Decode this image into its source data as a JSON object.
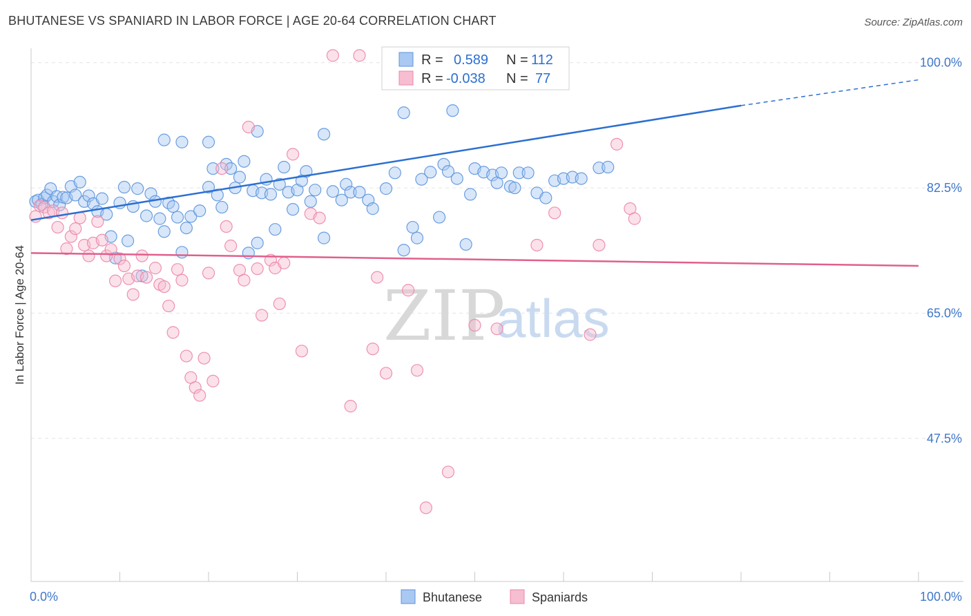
{
  "title": "BHUTANESE VS SPANIARD IN LABOR FORCE | AGE 20-64 CORRELATION CHART",
  "source": "Source: ZipAtlas.com",
  "watermark": {
    "zip": "ZIP",
    "atlas": "atlas"
  },
  "colors": {
    "blue": "#5b93dd",
    "blue_fill": "#a9c8f2",
    "blue_line": "#2b6fd1",
    "pink": "#eb86a8",
    "pink_fill": "#f7bdd1",
    "pink_line": "#e05f8d",
    "tick_label": "#3f77c9"
  },
  "stats": {
    "rows": [
      {
        "series": "Bhutanese",
        "r_label": "R =",
        "r_value": "0.589",
        "n_label": "N =",
        "n_value": "112"
      },
      {
        "series": "Spaniards",
        "r_label": "R =",
        "r_value": "-0.038",
        "n_label": "N =",
        "n_value": "77"
      }
    ]
  },
  "chart_data": {
    "type": "scatter",
    "title": "BHUTANESE VS SPANIARD IN LABOR FORCE | AGE 20-64 CORRELATION CHART",
    "xlabel": "",
    "ylabel": "In Labor Force | Age 20-64",
    "xlim": [
      0,
      100
    ],
    "ylim": [
      27.5,
      102
    ],
    "x_tick_labels": [
      "0.0%",
      "100.0%"
    ],
    "y_ticks": [
      47.5,
      65.0,
      82.5,
      100.0
    ],
    "y_tick_labels": [
      "47.5%",
      "65.0%",
      "82.5%",
      "100.0%"
    ],
    "grid": true,
    "legend": "bottom-center",
    "series": [
      {
        "name": "Bhutanese",
        "color": "#5b93dd",
        "trend": {
          "x": [
            0,
            80
          ],
          "y": [
            78.0,
            94.0
          ],
          "dashed_to": {
            "x": 100,
            "y": 97.6
          }
        },
        "points": [
          [
            0.5,
            80.6
          ],
          [
            0.8,
            80.8
          ],
          [
            1.2,
            80.2
          ],
          [
            1.5,
            81.1
          ],
          [
            1.8,
            81.5
          ],
          [
            2.2,
            82.4
          ],
          [
            2.5,
            80.6
          ],
          [
            2.9,
            81.3
          ],
          [
            3.2,
            80.1
          ],
          [
            3.6,
            81.2
          ],
          [
            4.0,
            81.1
          ],
          [
            4.5,
            82.7
          ],
          [
            5.0,
            81.5
          ],
          [
            5.5,
            83.3
          ],
          [
            6.0,
            80.6
          ],
          [
            6.5,
            81.4
          ],
          [
            7.0,
            80.3
          ],
          [
            7.5,
            79.2
          ],
          [
            8.0,
            81.0
          ],
          [
            8.5,
            78.8
          ],
          [
            9.0,
            75.7
          ],
          [
            9.5,
            72.7
          ],
          [
            10.0,
            80.4
          ],
          [
            10.5,
            82.6
          ],
          [
            10.9,
            75.1
          ],
          [
            11.5,
            79.9
          ],
          [
            12.0,
            82.4
          ],
          [
            12.5,
            70.2
          ],
          [
            13.0,
            78.6
          ],
          [
            13.5,
            81.7
          ],
          [
            14.0,
            80.6
          ],
          [
            14.5,
            78.2
          ],
          [
            15.0,
            76.4
          ],
          [
            15.5,
            80.4
          ],
          [
            16.0,
            79.9
          ],
          [
            16.5,
            78.4
          ],
          [
            17.0,
            73.5
          ],
          [
            17.5,
            76.9
          ],
          [
            18.0,
            78.5
          ],
          [
            19.0,
            79.3
          ],
          [
            20.0,
            82.6
          ],
          [
            20.5,
            85.2
          ],
          [
            21.0,
            81.5
          ],
          [
            21.5,
            79.8
          ],
          [
            22.0,
            85.8
          ],
          [
            22.5,
            85.2
          ],
          [
            23.0,
            82.5
          ],
          [
            23.5,
            84.0
          ],
          [
            24.0,
            86.2
          ],
          [
            24.5,
            73.4
          ],
          [
            25.0,
            82.1
          ],
          [
            25.5,
            74.8
          ],
          [
            26.0,
            81.8
          ],
          [
            26.5,
            83.7
          ],
          [
            27.0,
            81.6
          ],
          [
            27.5,
            76.7
          ],
          [
            28.0,
            83.0
          ],
          [
            28.5,
            85.4
          ],
          [
            29.0,
            81.9
          ],
          [
            29.5,
            79.5
          ],
          [
            30.0,
            82.2
          ],
          [
            30.5,
            83.5
          ],
          [
            31.0,
            84.8
          ],
          [
            31.5,
            80.6
          ],
          [
            32.0,
            82.2
          ],
          [
            33.0,
            75.5
          ],
          [
            34.0,
            82.0
          ],
          [
            35.0,
            80.8
          ],
          [
            35.5,
            83.0
          ],
          [
            36.0,
            81.9
          ],
          [
            37.0,
            81.9
          ],
          [
            38.0,
            80.8
          ],
          [
            38.5,
            79.6
          ],
          [
            40.0,
            82.4
          ],
          [
            41.0,
            84.6
          ],
          [
            42.0,
            73.8
          ],
          [
            43.0,
            77.0
          ],
          [
            43.5,
            75.5
          ],
          [
            44.0,
            83.7
          ],
          [
            45.0,
            84.7
          ],
          [
            46.0,
            78.4
          ],
          [
            46.5,
            85.8
          ],
          [
            47.0,
            84.8
          ],
          [
            48.0,
            83.8
          ],
          [
            49.0,
            74.6
          ],
          [
            49.5,
            81.6
          ],
          [
            50.0,
            85.2
          ],
          [
            51.0,
            84.7
          ],
          [
            52.0,
            84.3
          ],
          [
            52.5,
            83.2
          ],
          [
            53.0,
            84.6
          ],
          [
            54.0,
            82.7
          ],
          [
            54.5,
            82.5
          ],
          [
            55.0,
            84.6
          ],
          [
            56.0,
            84.6
          ],
          [
            57.0,
            81.8
          ],
          [
            58.0,
            81.1
          ],
          [
            59.0,
            83.5
          ],
          [
            60.0,
            83.8
          ],
          [
            61.0,
            84.0
          ],
          [
            62.0,
            83.8
          ],
          [
            64.0,
            85.3
          ],
          [
            65.0,
            85.4
          ],
          [
            15.0,
            89.2
          ],
          [
            17.0,
            88.9
          ],
          [
            20.0,
            88.9
          ],
          [
            25.5,
            90.4
          ],
          [
            33.0,
            90.0
          ],
          [
            42.0,
            93.0
          ],
          [
            47.5,
            93.3
          ],
          [
            53.0,
            101.0
          ],
          [
            57.0,
            101.0
          ]
        ]
      },
      {
        "name": "Spaniards",
        "color": "#eb86a8",
        "trend": {
          "x": [
            0,
            100
          ],
          "y": [
            73.4,
            71.6
          ]
        },
        "points": [
          [
            0.5,
            78.5
          ],
          [
            1.0,
            80.0
          ],
          [
            1.5,
            79.8
          ],
          [
            2.0,
            79.0
          ],
          [
            2.5,
            79.3
          ],
          [
            3.0,
            77.0
          ],
          [
            3.5,
            79.0
          ],
          [
            4.0,
            74.0
          ],
          [
            4.5,
            75.7
          ],
          [
            5.0,
            76.8
          ],
          [
            5.5,
            78.3
          ],
          [
            6.0,
            74.5
          ],
          [
            6.5,
            73.0
          ],
          [
            7.0,
            74.8
          ],
          [
            7.5,
            77.8
          ],
          [
            8.0,
            75.2
          ],
          [
            8.5,
            73.0
          ],
          [
            9.0,
            73.9
          ],
          [
            9.5,
            69.5
          ],
          [
            10.0,
            72.6
          ],
          [
            10.5,
            71.6
          ],
          [
            11.0,
            69.8
          ],
          [
            11.5,
            67.6
          ],
          [
            12.0,
            70.2
          ],
          [
            12.5,
            73.0
          ],
          [
            13.0,
            70.0
          ],
          [
            14.0,
            71.3
          ],
          [
            14.5,
            69.0
          ],
          [
            15.0,
            68.7
          ],
          [
            15.5,
            66.0
          ],
          [
            16.0,
            62.3
          ],
          [
            16.5,
            71.1
          ],
          [
            17.0,
            69.6
          ],
          [
            17.5,
            59.0
          ],
          [
            18.0,
            56.0
          ],
          [
            18.5,
            54.6
          ],
          [
            19.0,
            53.5
          ],
          [
            19.5,
            58.7
          ],
          [
            20.0,
            70.6
          ],
          [
            20.5,
            55.5
          ],
          [
            21.5,
            85.2
          ],
          [
            22.0,
            77.1
          ],
          [
            22.5,
            74.4
          ],
          [
            23.5,
            71.0
          ],
          [
            24.0,
            69.6
          ],
          [
            24.5,
            91.0
          ],
          [
            25.5,
            71.2
          ],
          [
            26.0,
            64.7
          ],
          [
            27.0,
            72.4
          ],
          [
            27.5,
            71.3
          ],
          [
            28.0,
            66.3
          ],
          [
            28.5,
            72.0
          ],
          [
            29.5,
            87.2
          ],
          [
            30.5,
            59.7
          ],
          [
            31.5,
            78.9
          ],
          [
            32.5,
            78.3
          ],
          [
            34.0,
            101.0
          ],
          [
            36.0,
            52.0
          ],
          [
            37.0,
            101.0
          ],
          [
            38.5,
            60.0
          ],
          [
            39.0,
            70.0
          ],
          [
            40.0,
            56.6
          ],
          [
            41.0,
            101.0
          ],
          [
            42.5,
            68.2
          ],
          [
            43.5,
            57.0
          ],
          [
            44.5,
            37.8
          ],
          [
            45.0,
            101.0
          ],
          [
            47.0,
            42.8
          ],
          [
            50.0,
            63.3
          ],
          [
            52.5,
            62.8
          ],
          [
            57.0,
            74.5
          ],
          [
            59.0,
            79.0
          ],
          [
            63.0,
            62.0
          ],
          [
            64.0,
            74.5
          ],
          [
            66.0,
            88.6
          ],
          [
            67.5,
            79.6
          ],
          [
            68.0,
            78.2
          ]
        ]
      }
    ]
  },
  "legend": {
    "items": [
      "Bhutanese",
      "Spaniards"
    ]
  }
}
